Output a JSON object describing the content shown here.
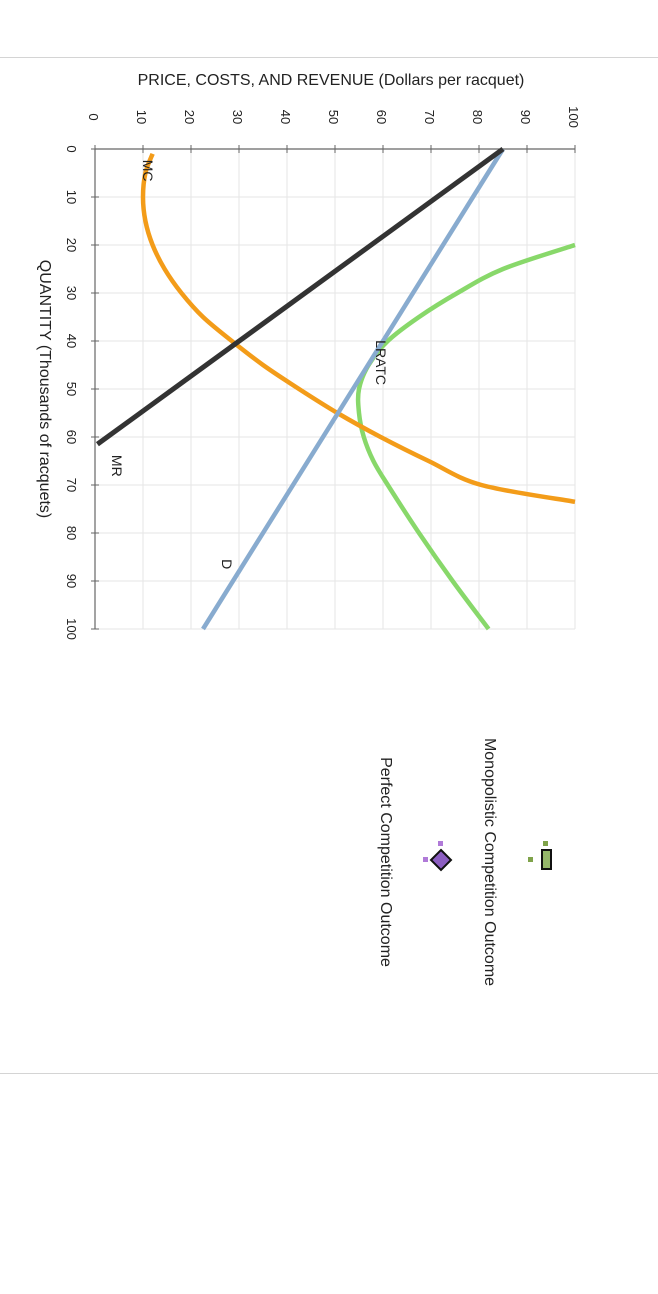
{
  "chart_data": {
    "type": "line",
    "ylabel": "PRICE, COSTS, AND REVENUE (Dollars per racquet)",
    "xlabel": "QUANTITY (Thousands of racquets)",
    "xlim": [
      0,
      100
    ],
    "ylim": [
      0,
      100
    ],
    "x_ticks": [
      0,
      10,
      20,
      30,
      40,
      50,
      60,
      70,
      80,
      90,
      100
    ],
    "y_ticks": [
      0,
      10,
      20,
      30,
      40,
      50,
      60,
      70,
      80,
      90,
      100
    ],
    "grid": true,
    "orientation": "rotated 90 degrees clockwise",
    "series": [
      {
        "name": "MC",
        "color": "#f39c19",
        "points": [
          [
            1,
            12
          ],
          [
            5,
            10.5
          ],
          [
            10,
            10
          ],
          [
            15,
            10.5
          ],
          [
            20,
            12
          ],
          [
            25,
            14.5
          ],
          [
            30,
            18
          ],
          [
            35,
            22.5
          ],
          [
            40,
            28.5
          ],
          [
            45,
            35
          ],
          [
            50,
            42.5
          ],
          [
            55,
            50.5
          ],
          [
            60,
            59.5
          ],
          [
            65,
            69.5
          ],
          [
            70,
            80.5
          ],
          [
            73.5,
            100
          ]
        ]
      },
      {
        "name": "LRATC",
        "color": "#88d86a",
        "points": [
          [
            20,
            100
          ],
          [
            25,
            85
          ],
          [
            30,
            75.5
          ],
          [
            35,
            67.5
          ],
          [
            40,
            61
          ],
          [
            45,
            57
          ],
          [
            50,
            55
          ],
          [
            55,
            55
          ],
          [
            60,
            56
          ],
          [
            65,
            58
          ],
          [
            70,
            61
          ],
          [
            80,
            67.5
          ],
          [
            90,
            74.5
          ],
          [
            100,
            82
          ]
        ]
      },
      {
        "name": "D",
        "color": "#88abcf",
        "points": [
          [
            0,
            85
          ],
          [
            100,
            22.5
          ]
        ]
      },
      {
        "name": "MR",
        "color": "#333333",
        "points": [
          [
            0,
            85
          ],
          [
            61.5,
            0.5
          ]
        ]
      }
    ],
    "curve_labels": [
      {
        "text": "MC",
        "x": 4.5,
        "y": 10
      },
      {
        "text": "LRATC",
        "x": 44.5,
        "y": 58.5
      },
      {
        "text": "MR",
        "x": 66,
        "y": 3.5
      },
      {
        "text": "D",
        "x": 86.5,
        "y": 26.5
      }
    ],
    "legend": {
      "placement": "right",
      "items": [
        {
          "label": "Monopolistic Competition Outcome",
          "marker": "rectangle",
          "color": "#7fa34a",
          "icon": "green-rectangle-marker"
        },
        {
          "label": "Perfect Competition Outcome",
          "marker": "diamond",
          "color": "#8c5ec1",
          "icon": "purple-diamond-marker"
        }
      ]
    }
  }
}
